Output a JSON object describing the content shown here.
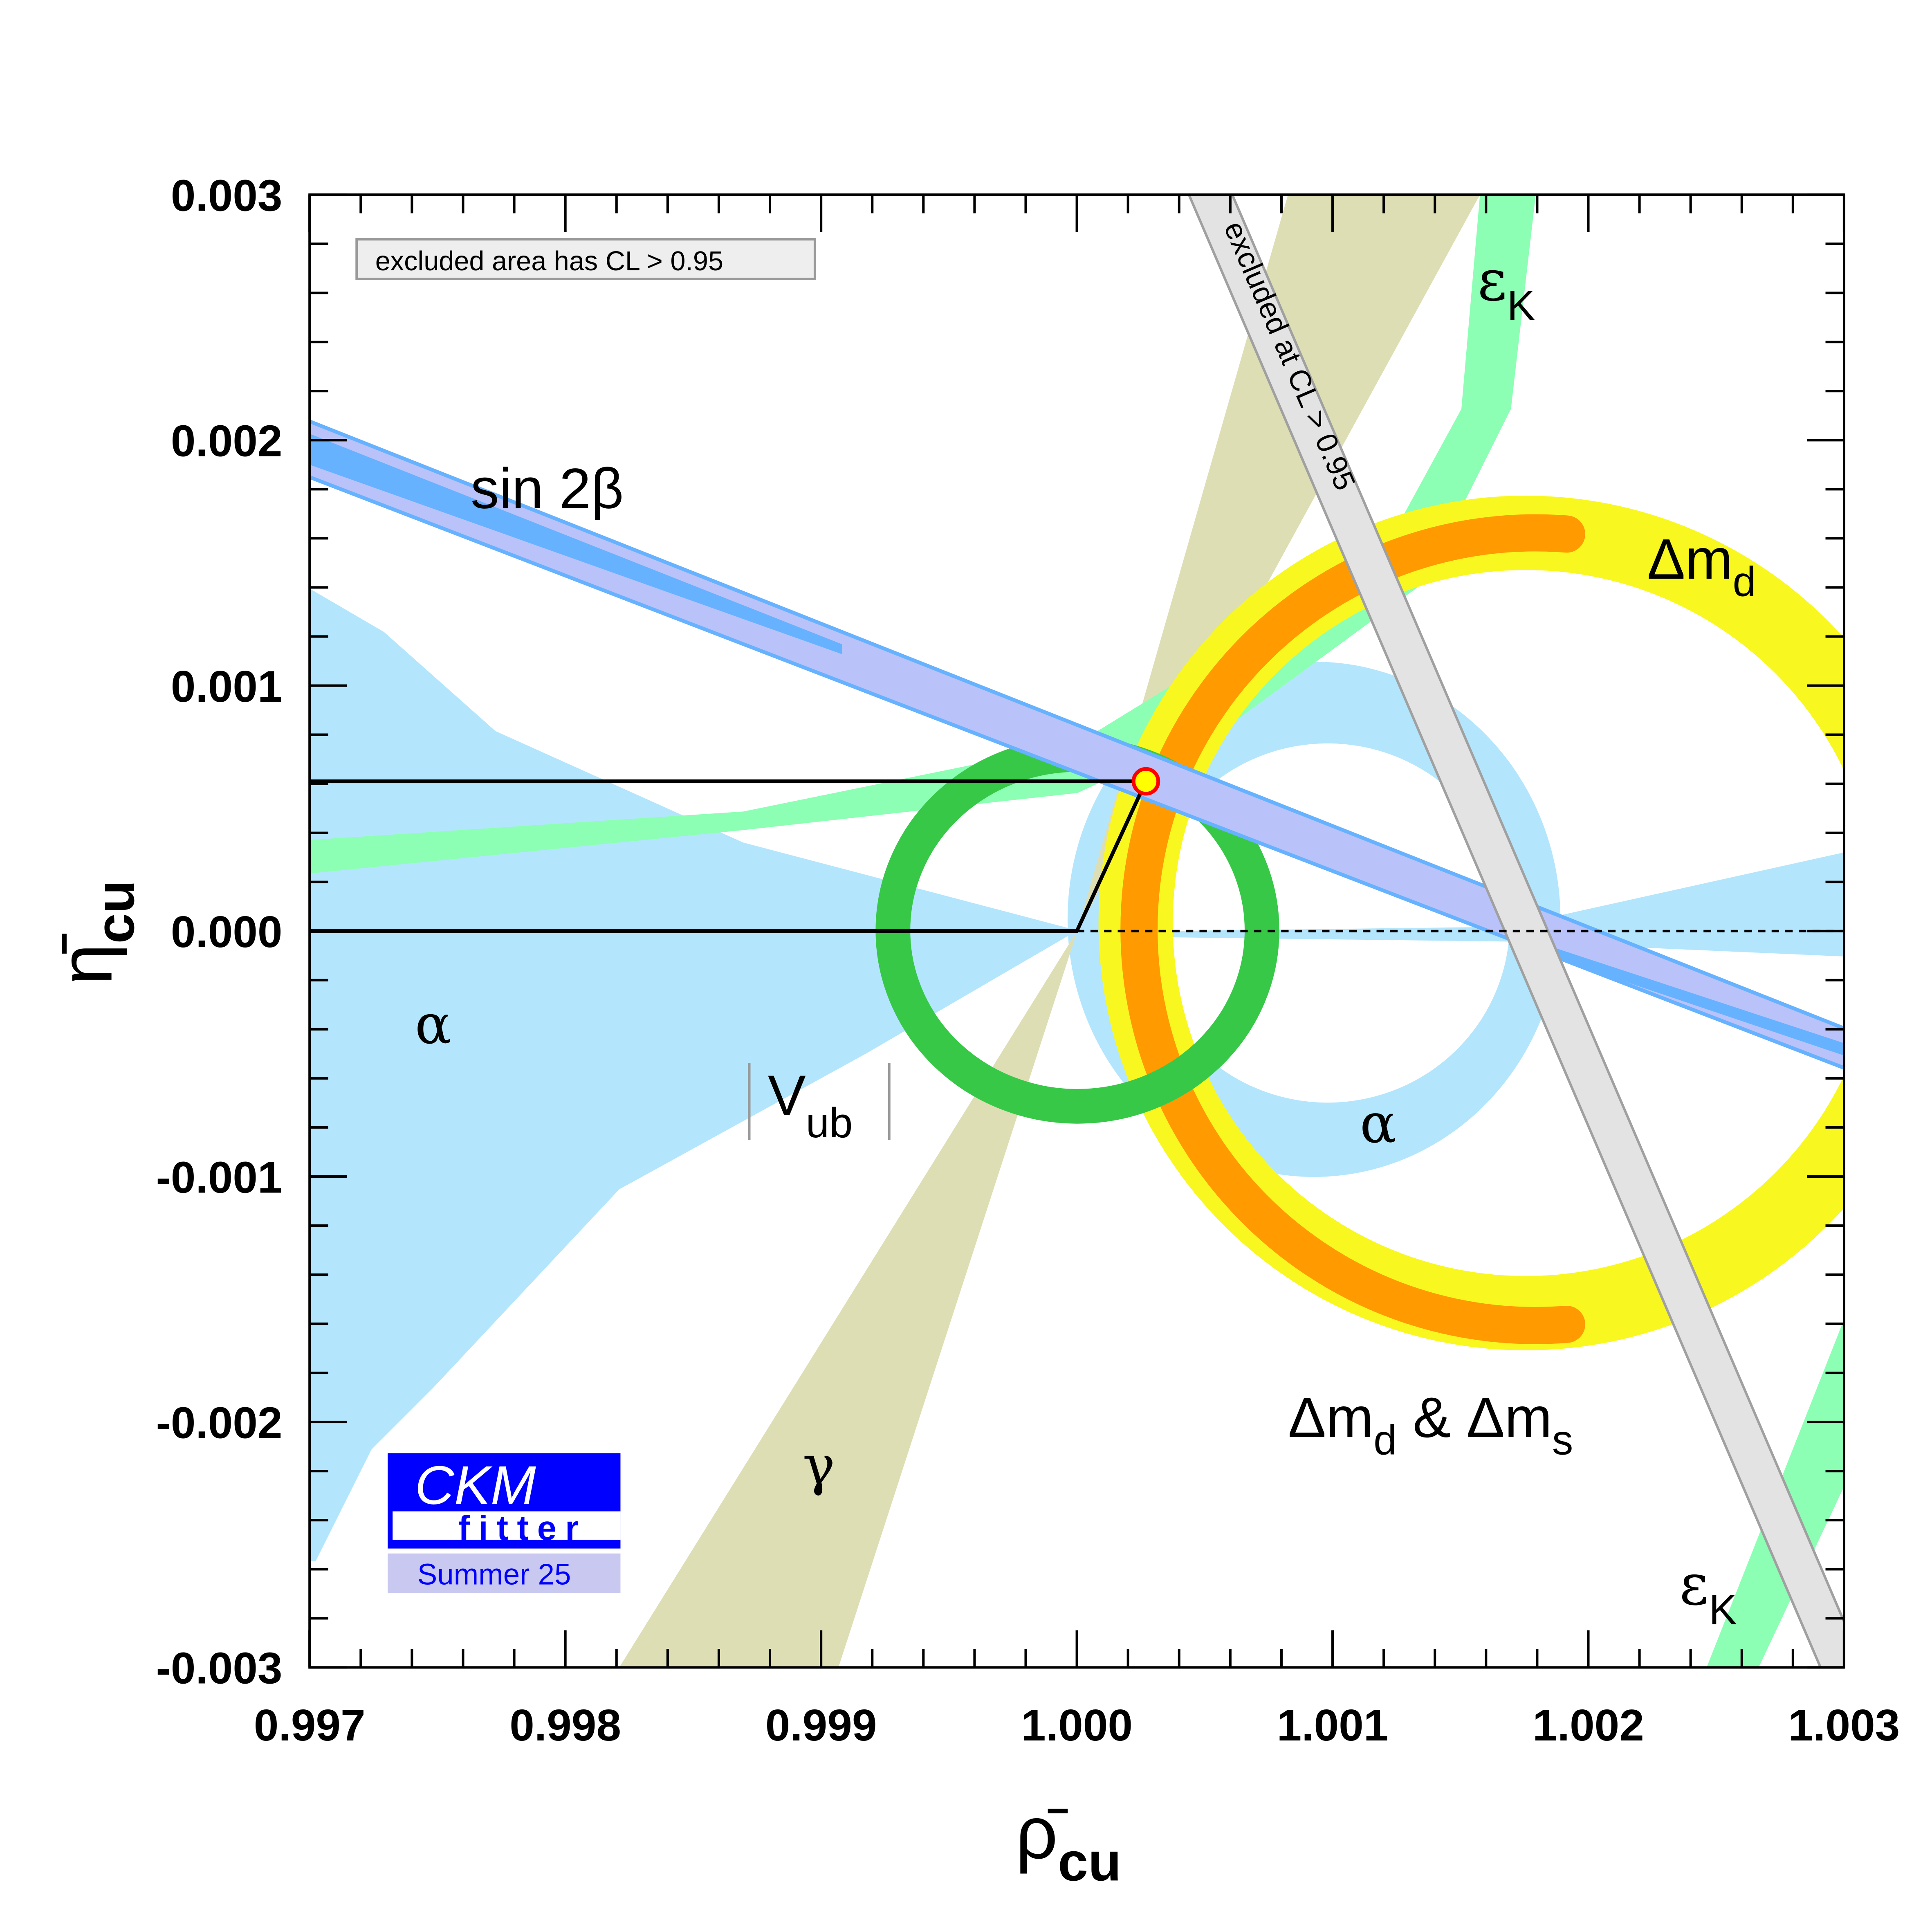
{
  "chart_data": {
    "type": "area",
    "title": "",
    "xlabel": "ρ̄",
    "xlabel_sub": "cu",
    "ylabel": "η̄",
    "ylabel_sub": "cu",
    "xlim": [
      0.997,
      1.003
    ],
    "ylim": [
      -0.003,
      0.003
    ],
    "grid": false,
    "x_ticks": [
      "0.997",
      "0.998",
      "0.999",
      "1.000",
      "1.001",
      "1.002",
      "1.003"
    ],
    "y_ticks": [
      "0.003",
      "0.002",
      "0.001",
      "0.000",
      "-0.001",
      "-0.002",
      "-0.003"
    ],
    "x_minor_per_major": 5,
    "y_minor_per_major": 5,
    "best_fit": {
      "rho": 1.00027,
      "eta": 0.00061
    },
    "triangle": [
      [
        0.997,
        0.00061
      ],
      [
        1.00027,
        0.00061
      ],
      [
        1.0,
        0.0
      ],
      [
        0.997,
        0.0
      ]
    ],
    "constraints": [
      {
        "name": "sin 2β",
        "color": "#b9c3fa",
        "edge": "#66b2ff"
      },
      {
        "name": "α",
        "color": "#b3e6fc"
      },
      {
        "name": "γ",
        "color": "#dedeb4"
      },
      {
        "name": "εK",
        "color": "#8cffb4"
      },
      {
        "name": "Δm_d",
        "color": "#f8f820"
      },
      {
        "name": "Δm_d & Δm_s",
        "color": "#ff9a00"
      },
      {
        "name": "|V_ub|",
        "color": "#38c848"
      },
      {
        "name": "excluded at CL > 0.95",
        "color": "#e3e3e3"
      }
    ],
    "annotations": {
      "legend_box": "excluded area has CL > 0.95",
      "excluded_band": "excluded at CL > 0.95",
      "sin2beta": "sin 2β",
      "alpha": "α",
      "gamma": "γ",
      "vub": "V",
      "vub_sub": "ub",
      "dmd": "Δm",
      "dmd_sub": "d",
      "dmdms_a": "Δm",
      "dmdms_a_sub": "d",
      "dmdms_mid": " & Δm",
      "dmdms_b_sub": "s",
      "epsk": "ε",
      "epsk_sub": "K"
    }
  },
  "logo": {
    "line1": "CKM",
    "line2": "fitter",
    "edition": "Summer 25"
  }
}
